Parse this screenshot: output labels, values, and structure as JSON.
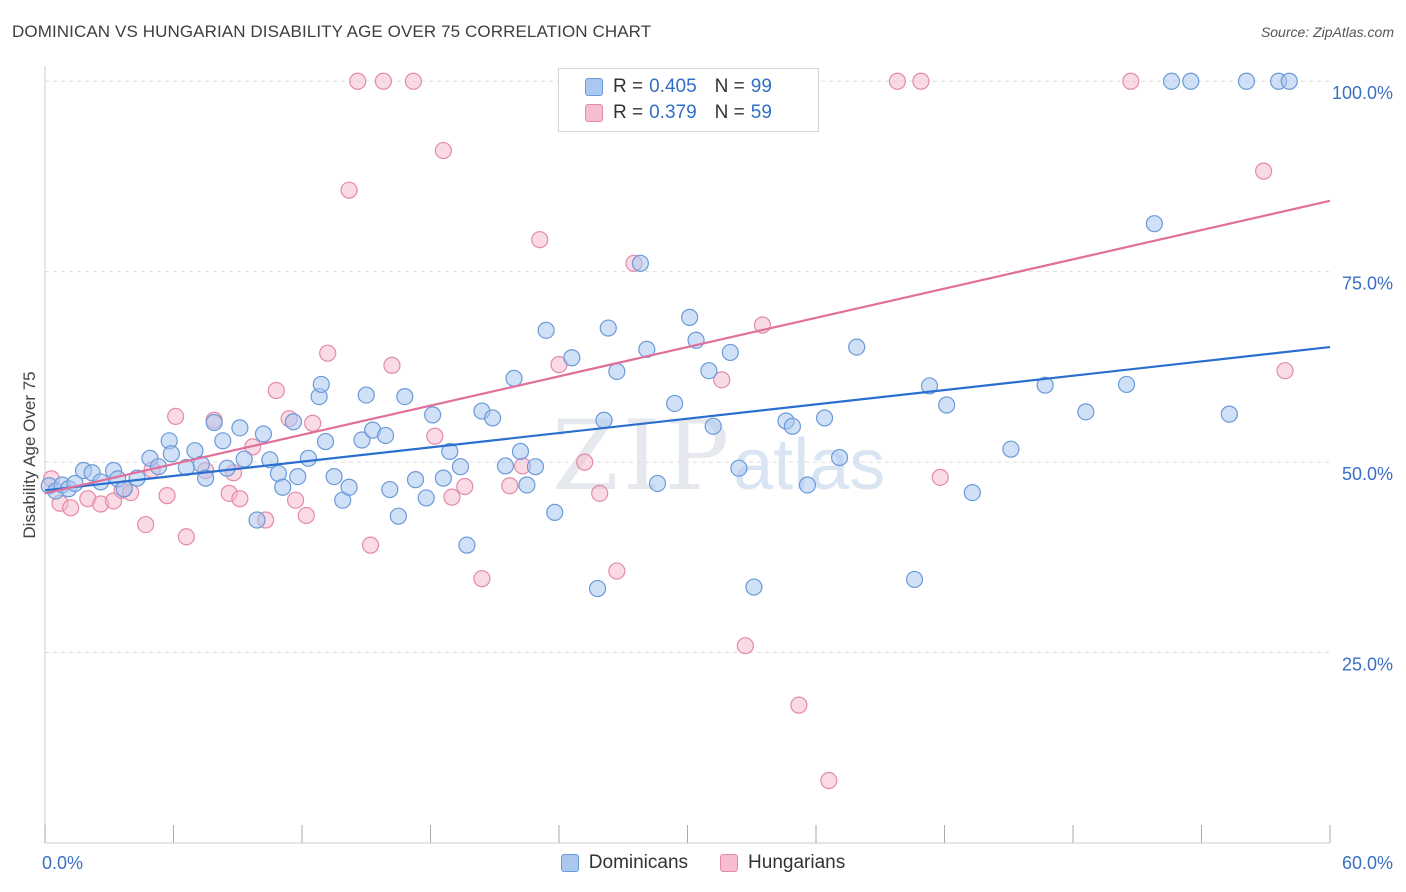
{
  "header": {
    "title": "DOMINICAN VS HUNGARIAN DISABILITY AGE OVER 75 CORRELATION CHART",
    "source": "Source: ZipAtlas.com"
  },
  "watermark": {
    "zip": "ZIP",
    "atlas": "atlas"
  },
  "legend": {
    "rows": [
      {
        "r_label": "R =",
        "r_value": "0.405",
        "n_label": "N =",
        "n_value": "99",
        "color": "#aac7f0"
      },
      {
        "r_label": "R =",
        "r_value": "0.379",
        "n_label": "N =",
        "n_value": "59",
        "color": "#f6bcd0"
      }
    ],
    "bottom": [
      "Dominicans",
      "Hungarians"
    ]
  },
  "colors": {
    "blue_fill": "#aac7f0",
    "blue_stroke": "#6a9ad8",
    "blue_line": "#2a6fcf",
    "pink_fill": "#f6bcd0",
    "pink_stroke": "#e48aaa",
    "pink_line": "#e0709a",
    "tick_text": "#3a6fc4",
    "grid": "#dddddd"
  },
  "chart_data": {
    "type": "scatter",
    "title": "DOMINICAN VS HUNGARIAN DISABILITY AGE OVER 75 CORRELATION CHART",
    "xlabel": "",
    "ylabel": "Disability Age Over 75",
    "xlim": [
      0,
      60
    ],
    "ylim": [
      0,
      102
    ],
    "x_tick_labels": [
      "0.0%",
      "60.0%"
    ],
    "y_tick_values": [
      25,
      50,
      75,
      100
    ],
    "y_tick_labels": [
      "25.0%",
      "50.0%",
      "75.0%",
      "100.0%"
    ],
    "grid": true,
    "series": [
      {
        "name": "Dominicans",
        "trend": {
          "x": [
            0,
            60
          ],
          "y": [
            46.3,
            65.1
          ]
        },
        "points": [
          [
            0.2,
            46.9
          ],
          [
            0.5,
            46.2
          ],
          [
            0.8,
            47.0
          ],
          [
            1.1,
            46.5
          ],
          [
            1.4,
            47.2
          ],
          [
            1.8,
            48.9
          ],
          [
            2.2,
            48.6
          ],
          [
            2.6,
            47.4
          ],
          [
            3.2,
            48.9
          ],
          [
            3.4,
            47.8
          ],
          [
            3.7,
            46.5
          ],
          [
            4.3,
            47.9
          ],
          [
            4.9,
            50.5
          ],
          [
            5.3,
            49.4
          ],
          [
            5.8,
            52.8
          ],
          [
            5.9,
            51.1
          ],
          [
            6.6,
            49.3
          ],
          [
            7.0,
            51.5
          ],
          [
            7.3,
            49.7
          ],
          [
            7.5,
            47.9
          ],
          [
            7.9,
            55.2
          ],
          [
            8.3,
            52.8
          ],
          [
            8.5,
            49.2
          ],
          [
            9.1,
            54.5
          ],
          [
            9.3,
            50.4
          ],
          [
            9.9,
            42.4
          ],
          [
            10.2,
            53.7
          ],
          [
            10.5,
            50.3
          ],
          [
            10.9,
            48.5
          ],
          [
            11.1,
            46.7
          ],
          [
            11.6,
            55.3
          ],
          [
            11.8,
            48.1
          ],
          [
            12.3,
            50.5
          ],
          [
            12.8,
            58.6
          ],
          [
            12.9,
            60.2
          ],
          [
            13.1,
            52.7
          ],
          [
            13.5,
            48.1
          ],
          [
            13.9,
            45.0
          ],
          [
            14.2,
            46.7
          ],
          [
            14.8,
            52.9
          ],
          [
            15.0,
            58.8
          ],
          [
            15.3,
            54.2
          ],
          [
            15.9,
            53.5
          ],
          [
            16.1,
            46.4
          ],
          [
            16.5,
            42.9
          ],
          [
            16.8,
            58.6
          ],
          [
            17.3,
            47.7
          ],
          [
            17.8,
            45.3
          ],
          [
            18.1,
            56.2
          ],
          [
            18.6,
            47.9
          ],
          [
            18.9,
            51.4
          ],
          [
            19.4,
            49.4
          ],
          [
            19.7,
            39.1
          ],
          [
            20.4,
            56.7
          ],
          [
            20.9,
            55.8
          ],
          [
            21.5,
            49.5
          ],
          [
            21.9,
            61.0
          ],
          [
            22.2,
            51.4
          ],
          [
            22.5,
            47.0
          ],
          [
            22.9,
            49.4
          ],
          [
            23.4,
            67.3
          ],
          [
            23.8,
            43.4
          ],
          [
            24.6,
            63.7
          ],
          [
            25.8,
            33.4
          ],
          [
            26.1,
            55.5
          ],
          [
            26.3,
            67.6
          ],
          [
            26.7,
            61.9
          ],
          [
            27.8,
            76.1
          ],
          [
            28.1,
            64.8
          ],
          [
            28.6,
            47.2
          ],
          [
            29.4,
            57.7
          ],
          [
            30.1,
            69.0
          ],
          [
            30.4,
            66.0
          ],
          [
            31.0,
            62.0
          ],
          [
            31.2,
            54.7
          ],
          [
            32.0,
            64.4
          ],
          [
            32.4,
            49.2
          ],
          [
            33.1,
            33.6
          ],
          [
            34.6,
            55.4
          ],
          [
            34.9,
            54.7
          ],
          [
            35.6,
            47.0
          ],
          [
            36.4,
            55.8
          ],
          [
            37.1,
            50.6
          ],
          [
            37.9,
            65.1
          ],
          [
            40.6,
            34.6
          ],
          [
            41.3,
            60.0
          ],
          [
            42.1,
            57.5
          ],
          [
            43.3,
            46.0
          ],
          [
            45.1,
            51.7
          ],
          [
            46.7,
            60.1
          ],
          [
            48.6,
            56.6
          ],
          [
            50.5,
            60.2
          ],
          [
            51.8,
            81.3
          ],
          [
            52.6,
            100.0
          ],
          [
            53.5,
            100.0
          ],
          [
            55.3,
            56.3
          ],
          [
            56.1,
            100.0
          ],
          [
            57.6,
            100.0
          ],
          [
            58.1,
            100.0
          ]
        ]
      },
      {
        "name": "Hungarians",
        "trend": {
          "x": [
            0,
            60
          ],
          "y": [
            45.9,
            84.3
          ]
        },
        "points": [
          [
            0.3,
            47.8
          ],
          [
            0.7,
            44.6
          ],
          [
            1.2,
            44.0
          ],
          [
            2.0,
            45.2
          ],
          [
            2.6,
            44.5
          ],
          [
            3.2,
            44.9
          ],
          [
            3.6,
            46.3
          ],
          [
            4.0,
            46.0
          ],
          [
            4.7,
            41.8
          ],
          [
            5.0,
            49.0
          ],
          [
            5.7,
            45.6
          ],
          [
            6.1,
            56.0
          ],
          [
            6.6,
            40.2
          ],
          [
            7.5,
            48.9
          ],
          [
            7.9,
            55.5
          ],
          [
            8.6,
            45.9
          ],
          [
            8.8,
            48.6
          ],
          [
            9.1,
            45.2
          ],
          [
            9.7,
            52.0
          ],
          [
            10.3,
            42.4
          ],
          [
            10.8,
            59.4
          ],
          [
            11.4,
            55.7
          ],
          [
            11.7,
            45.0
          ],
          [
            12.2,
            43.0
          ],
          [
            12.5,
            55.1
          ],
          [
            13.2,
            64.3
          ],
          [
            14.2,
            85.7
          ],
          [
            14.6,
            100.0
          ],
          [
            15.2,
            39.1
          ],
          [
            15.8,
            100.0
          ],
          [
            16.2,
            62.7
          ],
          [
            17.2,
            100.0
          ],
          [
            18.2,
            53.4
          ],
          [
            18.6,
            90.9
          ],
          [
            19.0,
            45.4
          ],
          [
            19.6,
            46.8
          ],
          [
            20.4,
            34.7
          ],
          [
            21.7,
            46.9
          ],
          [
            22.3,
            49.5
          ],
          [
            23.1,
            79.2
          ],
          [
            24.0,
            62.8
          ],
          [
            25.2,
            50.0
          ],
          [
            25.9,
            45.9
          ],
          [
            26.7,
            35.7
          ],
          [
            27.5,
            76.1
          ],
          [
            28.4,
            100.0
          ],
          [
            29.1,
            100.0
          ],
          [
            30.6,
            100.0
          ],
          [
            31.6,
            60.8
          ],
          [
            32.7,
            25.9
          ],
          [
            33.5,
            68.0
          ],
          [
            35.2,
            18.1
          ],
          [
            36.6,
            8.2
          ],
          [
            39.8,
            100.0
          ],
          [
            40.9,
            100.0
          ],
          [
            41.8,
            48.0
          ],
          [
            50.7,
            100.0
          ],
          [
            56.9,
            88.2
          ],
          [
            57.9,
            62.0
          ]
        ]
      }
    ]
  }
}
